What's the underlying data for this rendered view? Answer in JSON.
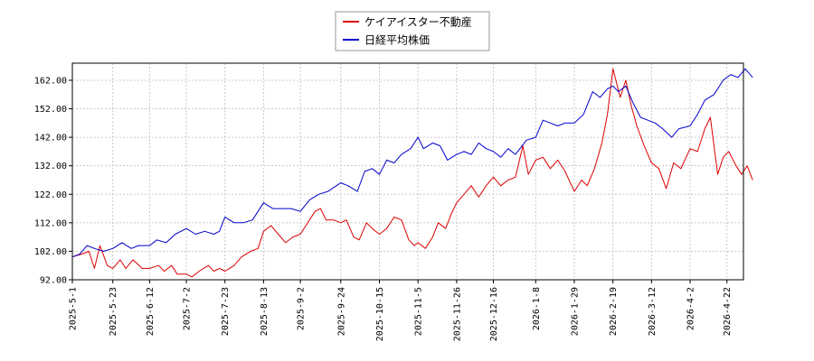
{
  "chart_data": {
    "type": "line",
    "title": "",
    "xlabel": "",
    "ylabel": "",
    "ylim": [
      92,
      168
    ],
    "xlim": [
      "2025-05-01",
      "2026-05-01"
    ],
    "grid": true,
    "legend_position": "top-center",
    "yticks": [
      {
        "value": 92,
        "label": "92.00"
      },
      {
        "value": 102,
        "label": "102.00"
      },
      {
        "value": 112,
        "label": "112.00"
      },
      {
        "value": 122,
        "label": "122.00"
      },
      {
        "value": 132,
        "label": "132.00"
      },
      {
        "value": 142,
        "label": "142.00"
      },
      {
        "value": 152,
        "label": "152.00"
      },
      {
        "value": 162,
        "label": "162.00"
      }
    ],
    "xticks": [
      "2025-5-1",
      "2025-5-23",
      "2025-6-12",
      "2025-7-2",
      "2025-7-23",
      "2025-8-13",
      "2025-9-2",
      "2025-9-24",
      "2025-10-15",
      "2025-11-5",
      "2025-11-26",
      "2025-12-16",
      "2026-1-8",
      "2026-1-29",
      "2026-2-19",
      "2026-3-12",
      "2026-4-2",
      "2026-4-22"
    ],
    "series": [
      {
        "name": "ケイアイスター不動産",
        "color": "#dd0000",
        "points": [
          [
            "2025-05-01",
            100
          ],
          [
            "2025-05-06",
            101
          ],
          [
            "2025-05-10",
            102
          ],
          [
            "2025-05-13",
            96
          ],
          [
            "2025-05-16",
            104
          ],
          [
            "2025-05-20",
            97
          ],
          [
            "2025-05-23",
            96
          ],
          [
            "2025-05-27",
            99
          ],
          [
            "2025-05-30",
            96
          ],
          [
            "2025-06-03",
            99
          ],
          [
            "2025-06-08",
            96
          ],
          [
            "2025-06-12",
            96
          ],
          [
            "2025-06-17",
            97
          ],
          [
            "2025-06-20",
            95
          ],
          [
            "2025-06-24",
            97
          ],
          [
            "2025-06-27",
            94
          ],
          [
            "2025-07-02",
            94
          ],
          [
            "2025-07-05",
            93
          ],
          [
            "2025-07-09",
            95
          ],
          [
            "2025-07-14",
            97
          ],
          [
            "2025-07-17",
            95
          ],
          [
            "2025-07-20",
            96
          ],
          [
            "2025-07-23",
            95
          ],
          [
            "2025-07-28",
            97
          ],
          [
            "2025-08-01",
            100
          ],
          [
            "2025-08-06",
            102
          ],
          [
            "2025-08-10",
            103
          ],
          [
            "2025-08-13",
            109
          ],
          [
            "2025-08-17",
            111
          ],
          [
            "2025-08-21",
            108
          ],
          [
            "2025-08-25",
            105
          ],
          [
            "2025-08-29",
            107
          ],
          [
            "2025-09-02",
            108
          ],
          [
            "2025-09-07",
            113
          ],
          [
            "2025-09-10",
            116
          ],
          [
            "2025-09-13",
            117
          ],
          [
            "2025-09-16",
            113
          ],
          [
            "2025-09-20",
            113
          ],
          [
            "2025-09-24",
            112
          ],
          [
            "2025-09-27",
            113
          ],
          [
            "2025-10-01",
            107
          ],
          [
            "2025-10-04",
            106
          ],
          [
            "2025-10-08",
            112
          ],
          [
            "2025-10-11",
            110
          ],
          [
            "2025-10-15",
            108
          ],
          [
            "2025-10-19",
            110
          ],
          [
            "2025-10-23",
            114
          ],
          [
            "2025-10-27",
            113
          ],
          [
            "2025-10-31",
            106
          ],
          [
            "2025-11-03",
            104
          ],
          [
            "2025-11-05",
            105
          ],
          [
            "2025-11-09",
            103
          ],
          [
            "2025-11-13",
            107
          ],
          [
            "2025-11-16",
            112
          ],
          [
            "2025-11-20",
            110
          ],
          [
            "2025-11-23",
            115
          ],
          [
            "2025-11-26",
            119
          ],
          [
            "2025-11-30",
            122
          ],
          [
            "2025-12-04",
            125
          ],
          [
            "2025-12-08",
            121
          ],
          [
            "2025-12-12",
            125
          ],
          [
            "2025-12-16",
            128
          ],
          [
            "2025-12-20",
            125
          ],
          [
            "2025-12-24",
            127
          ],
          [
            "2025-12-28",
            128
          ],
          [
            "2026-01-01",
            139
          ],
          [
            "2026-01-04",
            129
          ],
          [
            "2026-01-08",
            134
          ],
          [
            "2026-01-12",
            135
          ],
          [
            "2026-01-16",
            131
          ],
          [
            "2026-01-20",
            134
          ],
          [
            "2026-01-24",
            130
          ],
          [
            "2026-01-29",
            123
          ],
          [
            "2026-02-02",
            127
          ],
          [
            "2026-02-05",
            125
          ],
          [
            "2026-02-09",
            131
          ],
          [
            "2026-02-13",
            140
          ],
          [
            "2026-02-16",
            150
          ],
          [
            "2026-02-19",
            166
          ],
          [
            "2026-02-23",
            156
          ],
          [
            "2026-02-26",
            162
          ],
          [
            "2026-03-01",
            153
          ],
          [
            "2026-03-04",
            146
          ],
          [
            "2026-03-08",
            139
          ],
          [
            "2026-03-12",
            133
          ],
          [
            "2026-03-16",
            131
          ],
          [
            "2026-03-20",
            124
          ],
          [
            "2026-03-24",
            133
          ],
          [
            "2026-03-28",
            131
          ],
          [
            "2026-04-02",
            138
          ],
          [
            "2026-04-06",
            137
          ],
          [
            "2026-04-10",
            145
          ],
          [
            "2026-04-13",
            149
          ],
          [
            "2026-04-17",
            129
          ],
          [
            "2026-04-20",
            135
          ],
          [
            "2026-04-23",
            137
          ],
          [
            "2026-04-27",
            132
          ],
          [
            "2026-04-30",
            129
          ],
          [
            "2026-05-03",
            132
          ],
          [
            "2026-05-06",
            127
          ]
        ]
      },
      {
        "name": "日経平均株価",
        "color": "#0000cc",
        "points": [
          [
            "2025-05-01",
            100
          ],
          [
            "2025-05-05",
            101
          ],
          [
            "2025-05-09",
            104
          ],
          [
            "2025-05-13",
            103
          ],
          [
            "2025-05-18",
            102
          ],
          [
            "2025-05-23",
            103
          ],
          [
            "2025-05-28",
            105
          ],
          [
            "2025-06-02",
            103
          ],
          [
            "2025-06-06",
            104
          ],
          [
            "2025-06-12",
            104
          ],
          [
            "2025-06-16",
            106
          ],
          [
            "2025-06-21",
            105
          ],
          [
            "2025-06-26",
            108
          ],
          [
            "2025-07-02",
            110
          ],
          [
            "2025-07-07",
            108
          ],
          [
            "2025-07-12",
            109
          ],
          [
            "2025-07-17",
            108
          ],
          [
            "2025-07-20",
            109
          ],
          [
            "2025-07-23",
            114
          ],
          [
            "2025-07-28",
            112
          ],
          [
            "2025-08-02",
            112
          ],
          [
            "2025-08-07",
            113
          ],
          [
            "2025-08-13",
            119
          ],
          [
            "2025-08-18",
            117
          ],
          [
            "2025-08-23",
            117
          ],
          [
            "2025-08-28",
            117
          ],
          [
            "2025-09-02",
            116
          ],
          [
            "2025-09-07",
            120
          ],
          [
            "2025-09-12",
            122
          ],
          [
            "2025-09-17",
            123
          ],
          [
            "2025-09-24",
            126
          ],
          [
            "2025-09-28",
            125
          ],
          [
            "2025-10-03",
            123
          ],
          [
            "2025-10-07",
            130
          ],
          [
            "2025-10-11",
            131
          ],
          [
            "2025-10-15",
            129
          ],
          [
            "2025-10-19",
            134
          ],
          [
            "2025-10-23",
            133
          ],
          [
            "2025-10-27",
            136
          ],
          [
            "2025-11-01",
            138
          ],
          [
            "2025-11-05",
            142
          ],
          [
            "2025-11-08",
            138
          ],
          [
            "2025-11-13",
            140
          ],
          [
            "2025-11-17",
            139
          ],
          [
            "2025-11-21",
            134
          ],
          [
            "2025-11-26",
            136
          ],
          [
            "2025-11-30",
            137
          ],
          [
            "2025-12-04",
            136
          ],
          [
            "2025-12-08",
            140
          ],
          [
            "2025-12-12",
            138
          ],
          [
            "2025-12-16",
            137
          ],
          [
            "2025-12-20",
            135
          ],
          [
            "2025-12-24",
            138
          ],
          [
            "2025-12-28",
            136
          ],
          [
            "2026-01-03",
            141
          ],
          [
            "2026-01-08",
            142
          ],
          [
            "2026-01-12",
            148
          ],
          [
            "2026-01-16",
            147
          ],
          [
            "2026-01-20",
            146
          ],
          [
            "2026-01-24",
            147
          ],
          [
            "2026-01-29",
            147
          ],
          [
            "2026-02-03",
            150
          ],
          [
            "2026-02-08",
            158
          ],
          [
            "2026-02-12",
            156
          ],
          [
            "2026-02-16",
            159
          ],
          [
            "2026-02-19",
            160
          ],
          [
            "2026-02-22",
            158
          ],
          [
            "2026-02-26",
            160
          ],
          [
            "2026-03-02",
            154
          ],
          [
            "2026-03-06",
            149
          ],
          [
            "2026-03-10",
            148
          ],
          [
            "2026-03-14",
            147
          ],
          [
            "2026-03-18",
            145
          ],
          [
            "2026-03-23",
            142
          ],
          [
            "2026-03-27",
            145
          ],
          [
            "2026-04-02",
            146
          ],
          [
            "2026-04-06",
            150
          ],
          [
            "2026-04-10",
            155
          ],
          [
            "2026-04-15",
            157
          ],
          [
            "2026-04-20",
            162
          ],
          [
            "2026-04-24",
            164
          ],
          [
            "2026-04-28",
            163
          ],
          [
            "2026-05-02",
            166
          ],
          [
            "2026-05-06",
            163
          ]
        ]
      }
    ]
  }
}
